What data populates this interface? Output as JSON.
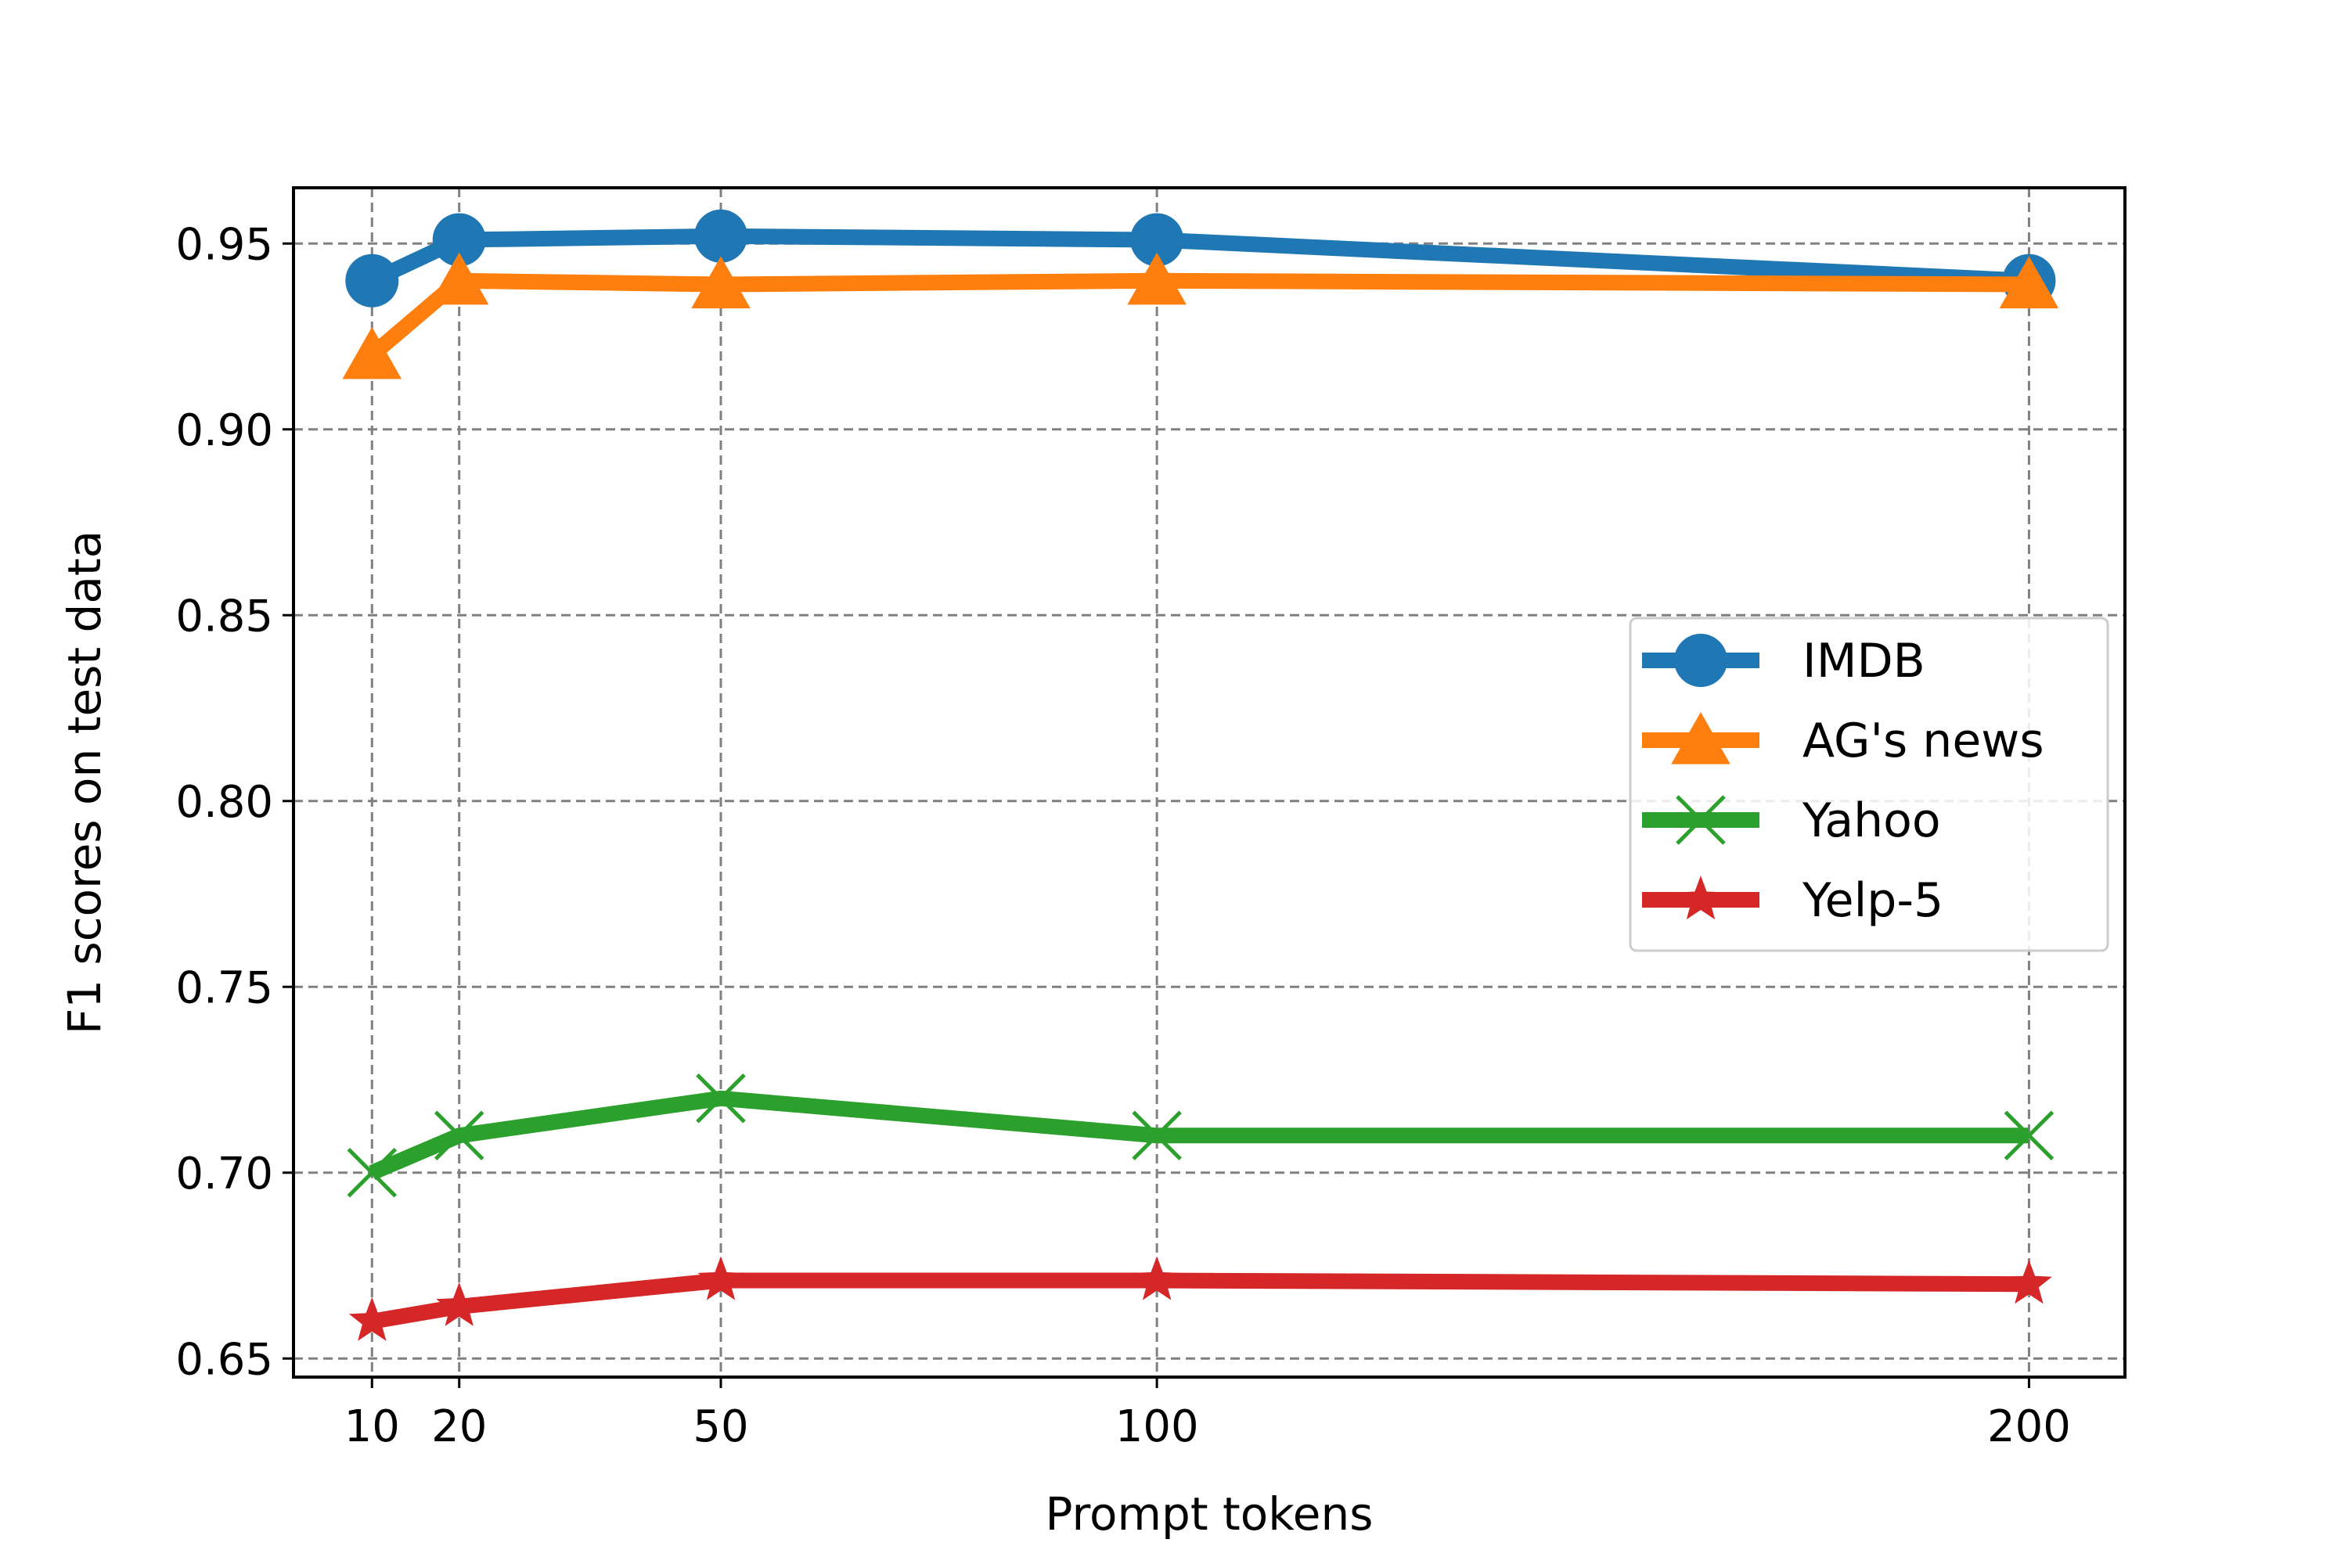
{
  "chart_data": {
    "type": "line",
    "xlabel": "Prompt tokens",
    "ylabel": "F1 scores on test data",
    "x": [
      10,
      20,
      50,
      100,
      200
    ],
    "xticks": [
      "10",
      "20",
      "50",
      "100",
      "200"
    ],
    "xlim": [
      1,
      211
    ],
    "ylim": [
      0.645,
      0.965
    ],
    "yticks": [
      "0.65",
      "0.70",
      "0.75",
      "0.80",
      "0.85",
      "0.90",
      "0.95"
    ],
    "grid": true,
    "grid_style": "dashed",
    "legend_position": "center-right",
    "series": [
      {
        "name": "IMDB",
        "marker": "circle",
        "color": "#1f77b4",
        "values": [
          0.94,
          0.951,
          0.952,
          0.951,
          0.94
        ]
      },
      {
        "name": "AG's news",
        "marker": "triangle",
        "color": "#ff7f0e",
        "values": [
          0.92,
          0.94,
          0.939,
          0.94,
          0.939
        ]
      },
      {
        "name": "Yahoo",
        "marker": "x",
        "color": "#2ca02c",
        "values": [
          0.7,
          0.71,
          0.72,
          0.71,
          0.71
        ]
      },
      {
        "name": "Yelp-5",
        "marker": "star",
        "color": "#d62728",
        "values": [
          0.66,
          0.664,
          0.671,
          0.671,
          0.67
        ]
      }
    ]
  }
}
